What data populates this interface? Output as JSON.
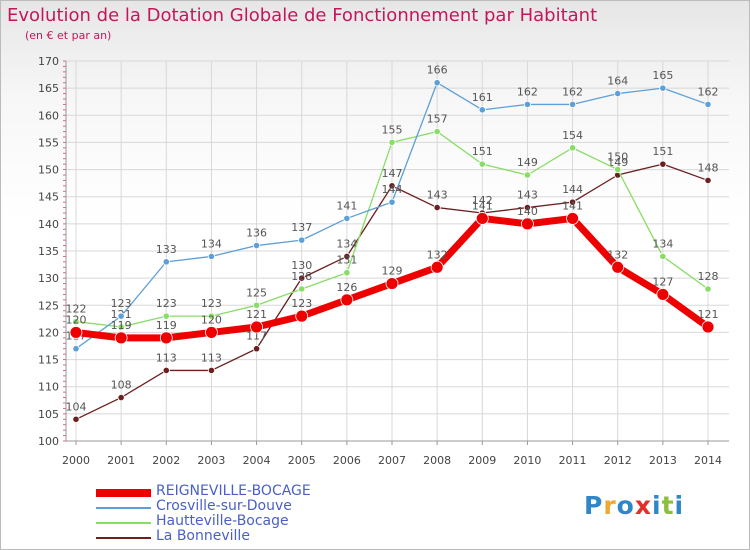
{
  "header": {
    "title": "Evolution de la Dotation Globale de Fonctionnement par Habitant",
    "subtitle": "(en € et par an)"
  },
  "logo": {
    "text": "Proxiti",
    "letters": [
      {
        "ch": "P",
        "color": "#2f87c8"
      },
      {
        "ch": "r",
        "color": "#f0a830"
      },
      {
        "ch": "o",
        "color": "#2f87c8"
      },
      {
        "ch": "x",
        "color": "#e0302a"
      },
      {
        "ch": "i",
        "color": "#2f87c8"
      },
      {
        "ch": "t",
        "color": "#8cbf3c"
      },
      {
        "ch": "i",
        "color": "#2f87c8"
      }
    ]
  },
  "chart_data": {
    "type": "line",
    "title": "Evolution de la Dotation Globale de Fonctionnement par Habitant",
    "ylabel": "(en € et par an)",
    "xlabel": "",
    "x": [
      "2000",
      "2001",
      "2002",
      "2003",
      "2004",
      "2005",
      "2006",
      "2007",
      "2008",
      "2009",
      "2010",
      "2011",
      "2012",
      "2013",
      "2014"
    ],
    "ylim": [
      100,
      170
    ],
    "yticks": [
      100,
      105,
      110,
      115,
      120,
      125,
      130,
      135,
      140,
      145,
      150,
      155,
      160,
      165,
      170
    ],
    "legend_position": "bottom-left",
    "series": [
      {
        "name": "REIGNEVILLE-BOCAGE",
        "color": "#ee0000",
        "values": [
          120,
          119,
          119,
          120,
          121,
          123,
          126,
          129,
          132,
          141,
          140,
          141,
          132,
          127,
          121
        ],
        "labels": [
          "120",
          "119",
          "119",
          "120",
          "121",
          "123",
          "126",
          "129",
          "132",
          "141",
          "140",
          "141",
          "132",
          "127",
          "121"
        ]
      },
      {
        "name": "Crosville-sur-Douve",
        "color": "#5d9fd8",
        "values": [
          117,
          123,
          133,
          134,
          136,
          137,
          141,
          144,
          166,
          161,
          162,
          162,
          164,
          165,
          162
        ],
        "labels": [
          "117",
          "123",
          "133",
          "134",
          "136",
          "137",
          "141",
          "144",
          "166",
          "161",
          "162",
          "162",
          "164",
          "165",
          "162"
        ]
      },
      {
        "name": "Hautteville-Bocage",
        "color": "#88dd66",
        "values": [
          122,
          121,
          123,
          123,
          125,
          128,
          131,
          155,
          157,
          151,
          149,
          154,
          150,
          134,
          128
        ],
        "labels": [
          "122",
          "121",
          "123",
          "123",
          "125",
          "128",
          "131",
          "155",
          "157",
          "151",
          "149",
          "154",
          "150",
          "134",
          "128"
        ]
      },
      {
        "name": "La Bonneville",
        "color": "#6b1f1f",
        "values": [
          104,
          108,
          113,
          113,
          117,
          130,
          134,
          147,
          143,
          142,
          143,
          144,
          149,
          151,
          148
        ],
        "labels": [
          "104",
          "108",
          "113",
          "113",
          "117",
          "130",
          "134",
          "147",
          "143",
          "142",
          "143",
          "144",
          "149",
          "151",
          "148"
        ]
      }
    ]
  }
}
